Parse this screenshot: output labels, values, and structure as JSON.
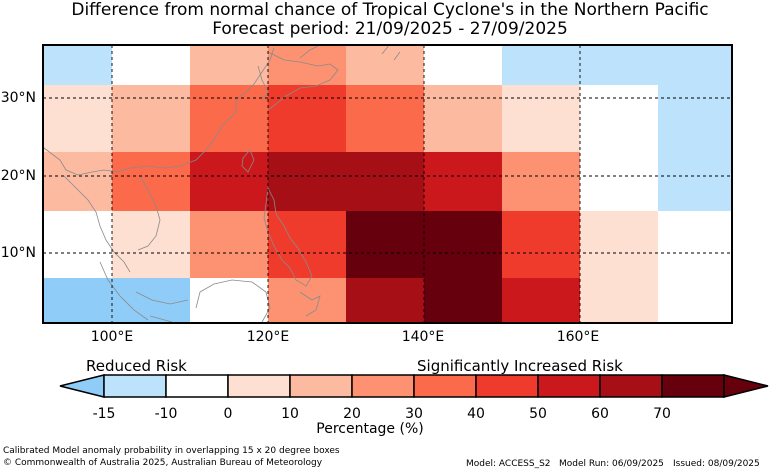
{
  "title_line1": "Difference from normal chance of Tropical Cyclone's in the Northern Pacific",
  "title_line2": "Forecast period: 21/09/2025 - 27/09/2025",
  "lat_labels": [
    "30°N",
    "20°N",
    "10°N"
  ],
  "lon_labels": [
    "100°E",
    "120°E",
    "140°E",
    "160°E"
  ],
  "risk_low": "Reduced Risk",
  "risk_high": "Significantly Increased Risk",
  "colorbar": {
    "label": "Percentage (%)",
    "ticks": [
      "-15",
      "-10",
      "0",
      "10",
      "20",
      "30",
      "40",
      "50",
      "60",
      "70"
    ],
    "colors": [
      "#bde2fb",
      "#ffffff",
      "#fee0d2",
      "#fcbba1",
      "#fc9272",
      "#fb6a4a",
      "#ef3b2c",
      "#cb181d",
      "#a50f15",
      "#67000d"
    ],
    "under_color": "#8fcdf8",
    "over_color": "#67000d"
  },
  "chart_data": {
    "type": "heatmap",
    "cell_size_degrees": "15 x 20",
    "longitudes": [
      90,
      100,
      110,
      120,
      130,
      140,
      150,
      160,
      170,
      180
    ],
    "latitudes_top_to_bottom": [
      36,
      30,
      22,
      15,
      6,
      1
    ],
    "cells": [
      [
        "#bde2fb",
        "#ffffff",
        "#fcbba1",
        "#fc9272",
        "#fcbba1",
        "#ffffff",
        "#bde2fb",
        "#bde2fb",
        "#bde2fb"
      ],
      [
        "#fee0d2",
        "#fcbba1",
        "#fb6a4a",
        "#ef3b2c",
        "#fb6a4a",
        "#fcbba1",
        "#fee0d2",
        "#ffffff",
        "#bde2fb"
      ],
      [
        "#fcbba1",
        "#fb6a4a",
        "#cb181d",
        "#a50f15",
        "#a50f15",
        "#cb181d",
        "#fc9272",
        "#ffffff",
        "#bde2fb"
      ],
      [
        "#ffffff",
        "#fee0d2",
        "#fc9272",
        "#ef3b2c",
        "#67000d",
        "#67000d",
        "#ef3b2c",
        "#fee0d2",
        "#ffffff"
      ],
      [
        "#8fcdf8",
        "#8fcdf8",
        "#ffffff",
        "#fc9272",
        "#a50f15",
        "#67000d",
        "#cb181d",
        "#fee0d2",
        "#ffffff"
      ]
    ]
  },
  "footer": {
    "note": "Calibrated Model anomaly probability in overlapping 15 x 20 degree boxes",
    "copyright": "© Commonwealth of Australia 2025, Australian Bureau of Meteorology",
    "model": "Model: ACCESS_S2",
    "model_run": "Model Run: 06/09/2025",
    "issued": "Issued: 08/09/2025"
  }
}
